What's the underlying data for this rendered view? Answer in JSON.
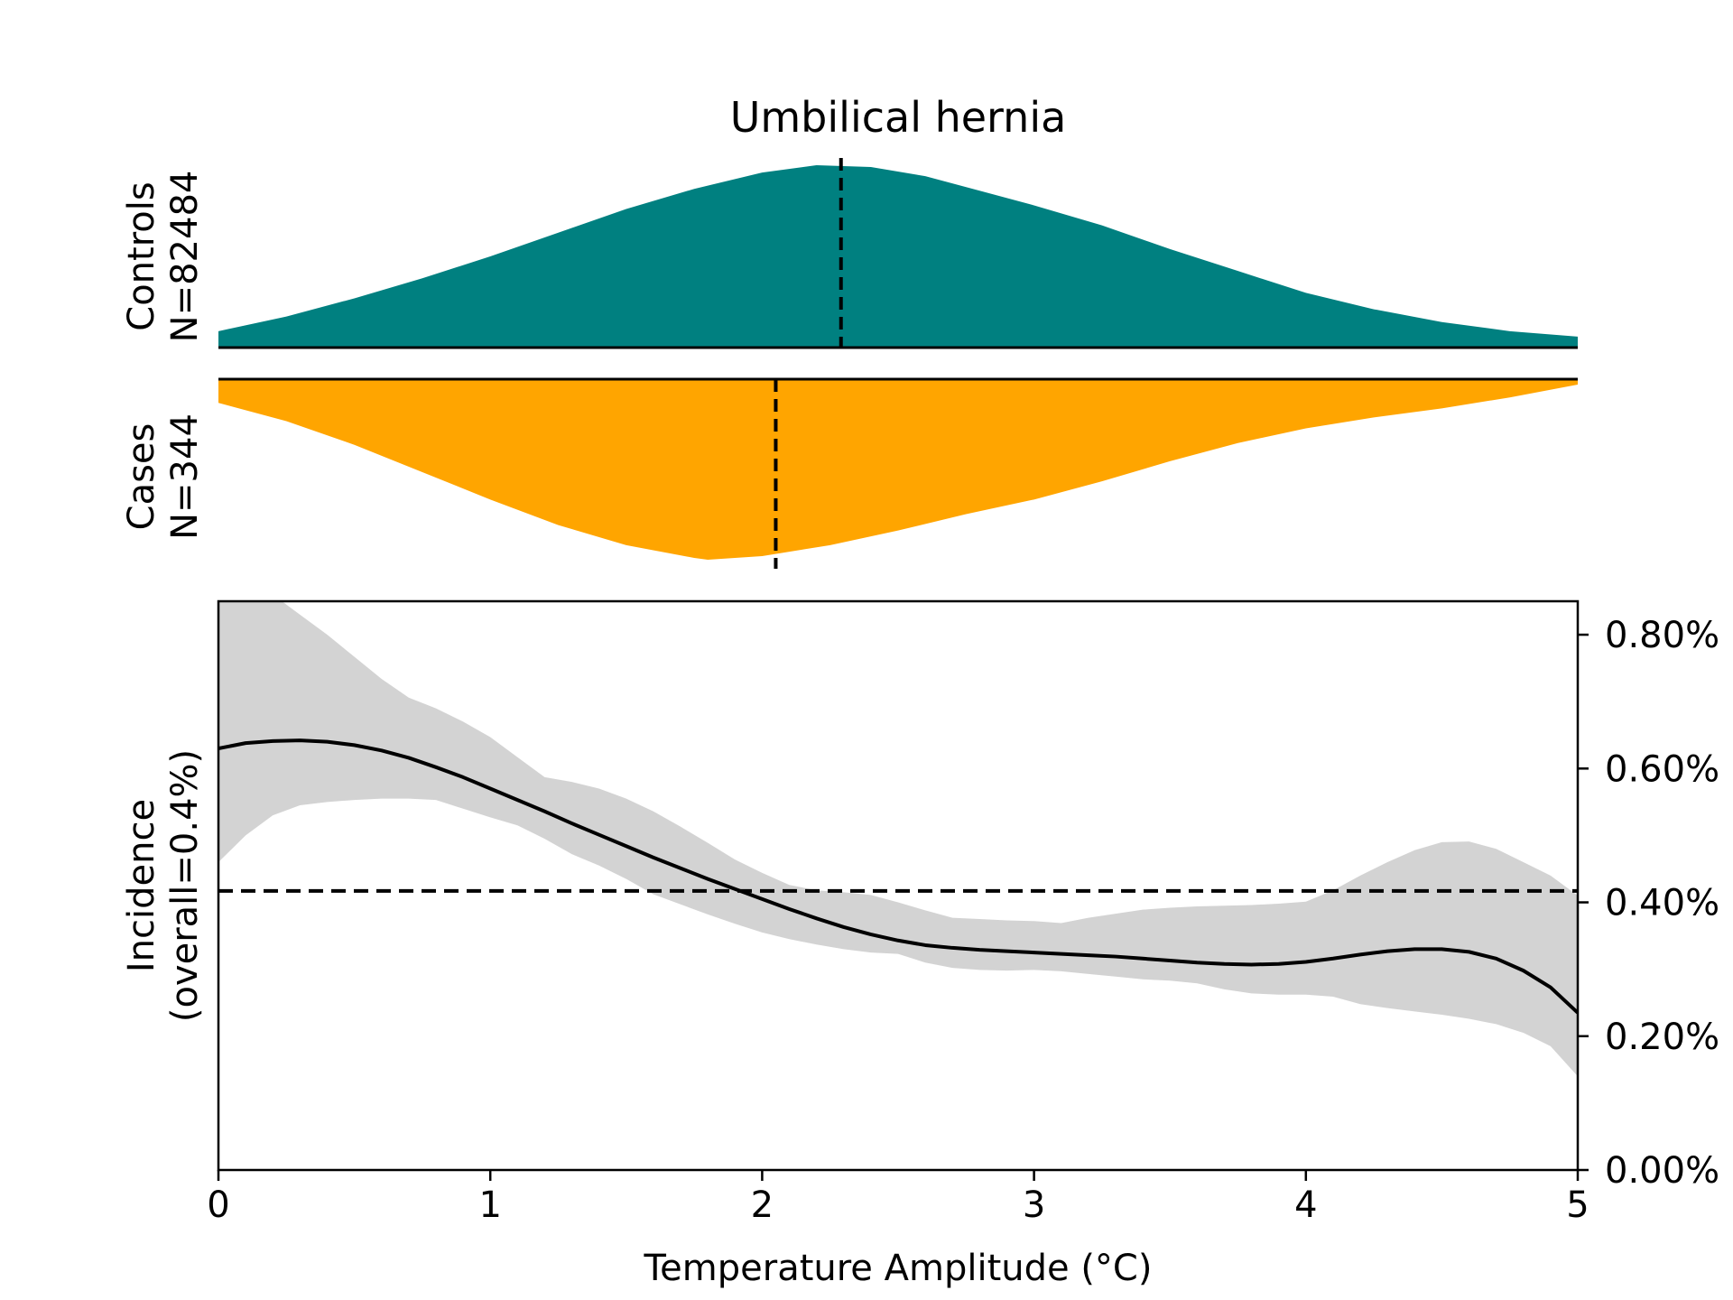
{
  "chart_data": [
    {
      "type": "area",
      "title": "Umbilical hernia",
      "group": "Controls",
      "n_label": "N=82484",
      "color": "#008080",
      "direction": "up",
      "xlim": [
        0,
        5
      ],
      "median_x": 2.29,
      "x": [
        0,
        0.25,
        0.5,
        0.75,
        1.0,
        1.25,
        1.5,
        1.75,
        2.0,
        2.2,
        2.4,
        2.6,
        2.8,
        3.0,
        3.25,
        3.5,
        3.75,
        4.0,
        4.25,
        4.5,
        4.75,
        5.0
      ],
      "density": [
        0.09,
        0.17,
        0.27,
        0.38,
        0.5,
        0.63,
        0.76,
        0.87,
        0.96,
        1.0,
        0.99,
        0.94,
        0.86,
        0.78,
        0.67,
        0.54,
        0.42,
        0.3,
        0.21,
        0.14,
        0.09,
        0.06
      ]
    },
    {
      "type": "area",
      "group": "Cases",
      "n_label": "N=344",
      "color": "#FFA500",
      "direction": "down",
      "xlim": [
        0,
        5
      ],
      "median_x": 2.05,
      "x": [
        0,
        0.25,
        0.5,
        0.75,
        1.0,
        1.25,
        1.5,
        1.75,
        1.8,
        2.0,
        2.25,
        2.5,
        2.75,
        3.0,
        3.25,
        3.5,
        3.75,
        4.0,
        4.25,
        4.5,
        4.75,
        5.0
      ],
      "density": [
        0.13,
        0.23,
        0.36,
        0.51,
        0.66,
        0.8,
        0.91,
        0.98,
        0.99,
        0.97,
        0.91,
        0.83,
        0.74,
        0.66,
        0.56,
        0.45,
        0.35,
        0.27,
        0.21,
        0.16,
        0.1,
        0.03
      ]
    },
    {
      "type": "line",
      "ylabel": "Incidence\n(overall=0.4%)",
      "xlabel": "Temperature Amplitude (°C)",
      "xlim": [
        0,
        5
      ],
      "ylim": [
        0,
        0.85
      ],
      "x_ticks": [
        0,
        1,
        2,
        3,
        4,
        5
      ],
      "y_ticks": [
        0,
        0.2,
        0.4,
        0.6,
        0.8
      ],
      "y_tick_labels": [
        "0.00%",
        "0.20%",
        "0.40%",
        "0.60%",
        "0.80%"
      ],
      "overall_incidence": 0.417,
      "band_color": "#d3d3d3",
      "x": [
        0,
        0.1,
        0.2,
        0.3,
        0.4,
        0.5,
        0.6,
        0.7,
        0.8,
        0.9,
        1.0,
        1.1,
        1.2,
        1.3,
        1.4,
        1.5,
        1.6,
        1.7,
        1.8,
        1.9,
        2.0,
        2.1,
        2.2,
        2.3,
        2.4,
        2.5,
        2.6,
        2.7,
        2.8,
        2.9,
        3.0,
        3.1,
        3.2,
        3.3,
        3.4,
        3.5,
        3.6,
        3.7,
        3.8,
        3.9,
        4.0,
        4.1,
        4.2,
        4.3,
        4.4,
        4.5,
        4.6,
        4.7,
        4.8,
        4.9,
        5.0
      ],
      "y": [
        0.63,
        0.638,
        0.641,
        0.642,
        0.64,
        0.635,
        0.627,
        0.616,
        0.602,
        0.587,
        0.57,
        0.553,
        0.536,
        0.518,
        0.501,
        0.484,
        0.467,
        0.451,
        0.435,
        0.42,
        0.405,
        0.39,
        0.376,
        0.363,
        0.352,
        0.343,
        0.336,
        0.332,
        0.329,
        0.327,
        0.325,
        0.323,
        0.321,
        0.319,
        0.316,
        0.313,
        0.31,
        0.308,
        0.307,
        0.308,
        0.311,
        0.316,
        0.322,
        0.327,
        0.33,
        0.33,
        0.326,
        0.316,
        0.298,
        0.273,
        0.235
      ],
      "lower": [
        0.46,
        0.5,
        0.53,
        0.545,
        0.55,
        0.553,
        0.555,
        0.555,
        0.553,
        0.54,
        0.527,
        0.515,
        0.495,
        0.472,
        0.455,
        0.435,
        0.412,
        0.397,
        0.382,
        0.368,
        0.355,
        0.345,
        0.337,
        0.33,
        0.325,
        0.323,
        0.31,
        0.302,
        0.299,
        0.298,
        0.299,
        0.297,
        0.293,
        0.289,
        0.285,
        0.283,
        0.279,
        0.27,
        0.264,
        0.262,
        0.262,
        0.259,
        0.248,
        0.242,
        0.237,
        0.232,
        0.226,
        0.218,
        0.205,
        0.185,
        0.14
      ],
      "upper": [
        0.87,
        0.87,
        0.86,
        0.83,
        0.8,
        0.767,
        0.734,
        0.706,
        0.69,
        0.67,
        0.647,
        0.617,
        0.587,
        0.58,
        0.57,
        0.555,
        0.536,
        0.513,
        0.489,
        0.464,
        0.444,
        0.426,
        0.418,
        0.415,
        0.411,
        0.4,
        0.388,
        0.377,
        0.375,
        0.373,
        0.372,
        0.369,
        0.377,
        0.383,
        0.389,
        0.392,
        0.394,
        0.395,
        0.396,
        0.398,
        0.401,
        0.418,
        0.44,
        0.46,
        0.478,
        0.49,
        0.491,
        0.48,
        0.46,
        0.44,
        0.41
      ]
    }
  ]
}
